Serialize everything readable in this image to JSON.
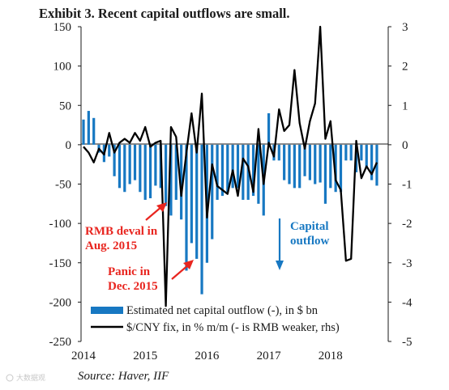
{
  "title": "Exhibit 3. Recent capital outflows are small.",
  "source": "Source: Haver, IIF",
  "watermark": "大数据观",
  "colors": {
    "bars": "#1778c2",
    "line": "#000000",
    "red_note": "#e8251f",
    "blue_note": "#1778c2"
  },
  "annotations": {
    "rmb_deval": [
      "RMB deval in",
      "Aug. 2015"
    ],
    "panic": [
      "Panic in",
      "Dec. 2015"
    ],
    "capital_outflow": [
      "Capital",
      "outflow"
    ]
  },
  "chart_data": {
    "type": "bar",
    "title": "Exhibit 3. Recent capital outflows are small.",
    "x_ticks": [
      "2014",
      "2015",
      "2016",
      "2017",
      "2018"
    ],
    "x_tick_months": [
      0,
      12,
      24,
      36,
      48
    ],
    "y_left": {
      "lim": [
        -250,
        150
      ],
      "ticks": [
        150,
        100,
        50,
        0,
        -50,
        -100,
        -150,
        -200,
        -250
      ]
    },
    "y_right": {
      "lim": [
        -5,
        3
      ],
      "ticks": [
        3,
        2,
        1,
        0,
        -1,
        -2,
        -3,
        -4,
        -5
      ]
    },
    "grid": false,
    "legend": [
      {
        "label": "Estimated net capital outflow (-), in $ bn",
        "kind": "bar"
      },
      {
        "label": "$/CNY fix, in % m/m (- is RMB weaker, rhs)",
        "kind": "line"
      }
    ],
    "series": [
      {
        "name": "Estimated net capital outflow (-), in $ bn",
        "axis": "left",
        "x": [
          0,
          1,
          2,
          3,
          4,
          5,
          6,
          7,
          8,
          9,
          10,
          11,
          12,
          13,
          14,
          15,
          16,
          17,
          18,
          19,
          20,
          21,
          22,
          23,
          24,
          25,
          26,
          27,
          28,
          29,
          30,
          31,
          32,
          33,
          34,
          35,
          36,
          37,
          38,
          39,
          40,
          41,
          42,
          43,
          44,
          45,
          46,
          47,
          48,
          49,
          50,
          51,
          52,
          53,
          54,
          55,
          56,
          57
        ],
        "values": [
          32,
          43,
          34,
          -10,
          -22,
          -15,
          -40,
          -55,
          -60,
          -50,
          -45,
          -60,
          -70,
          -68,
          -52,
          -55,
          -78,
          -90,
          -70,
          -95,
          -160,
          -125,
          -145,
          -190,
          -150,
          -120,
          -70,
          -65,
          -60,
          -55,
          -55,
          -70,
          -70,
          -65,
          -75,
          -90,
          40,
          -20,
          -20,
          -45,
          -50,
          -55,
          -55,
          -40,
          -45,
          -50,
          -48,
          -75,
          -55,
          -60,
          -60,
          -20,
          -20,
          -35,
          -20,
          -30,
          -45,
          -52
        ]
      },
      {
        "name": "$/CNY fix, in % m/m (- is RMB weaker, rhs)",
        "axis": "right",
        "x": [
          0,
          1,
          2,
          3,
          4,
          5,
          6,
          7,
          8,
          9,
          10,
          11,
          12,
          13,
          14,
          15,
          16,
          17,
          18,
          19,
          20,
          21,
          22,
          23,
          24,
          25,
          26,
          27,
          28,
          29,
          30,
          31,
          32,
          33,
          34,
          35,
          36,
          37,
          38,
          39,
          40,
          41,
          42,
          43,
          44,
          45,
          46,
          47,
          48,
          49,
          50,
          51,
          52,
          53,
          54,
          55,
          56,
          57
        ],
        "values": [
          -0.05,
          -0.2,
          -0.45,
          -0.1,
          -0.25,
          0.3,
          -0.2,
          0.05,
          0.15,
          0.05,
          0.3,
          0.1,
          0.45,
          -0.05,
          0.05,
          0.1,
          -4.1,
          0.45,
          0.2,
          -1.3,
          -0.2,
          0.8,
          -0.2,
          1.3,
          -1.85,
          -0.5,
          -1.05,
          -1.15,
          -1.25,
          -0.65,
          -1.3,
          -0.35,
          -0.55,
          -1.2,
          0.4,
          -1.0,
          0.05,
          -0.3,
          0.9,
          0.35,
          0.5,
          1.9,
          0.55,
          -0.1,
          0.6,
          1.05,
          3.0,
          0.15,
          0.6,
          -0.9,
          -1.15,
          -2.95,
          -2.9,
          0.1,
          -0.85,
          -0.55,
          -0.75,
          -0.45
        ]
      }
    ]
  }
}
